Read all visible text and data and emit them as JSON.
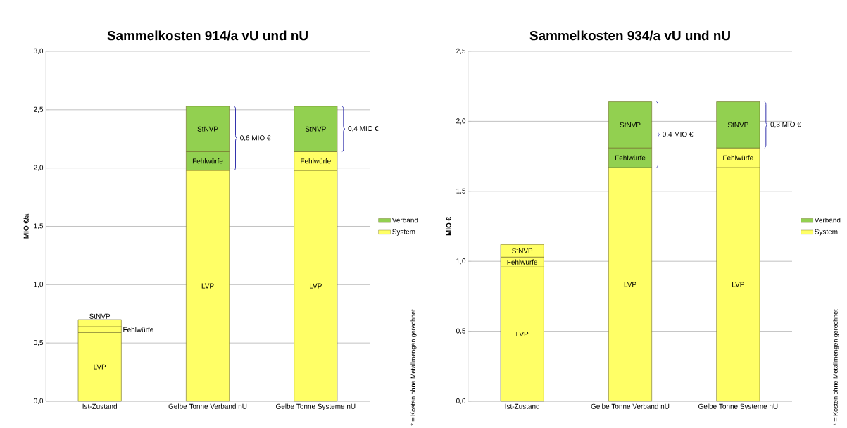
{
  "chart_data": [
    {
      "type": "bar",
      "stacked": true,
      "title": "Sammelkosten 914/a vU und nU",
      "ylabel": "MIO €/a",
      "categories": [
        "Ist-Zustand",
        "Gelbe Tonne Verband nU",
        "Gelbe Tonne Systeme nU"
      ],
      "series": [
        {
          "name": "LVP",
          "values": [
            0.59,
            1.98,
            1.98
          ],
          "colors": [
            "#ffff66",
            "#ffff66",
            "#ffff66"
          ]
        },
        {
          "name": "Fehlwürfe",
          "values": [
            0.05,
            0.16,
            0.16
          ],
          "colors": [
            "#ffff66",
            "#92d050",
            "#ffff66"
          ]
        },
        {
          "name": "StNVP",
          "values": [
            0.06,
            0.39,
            0.39
          ],
          "colors": [
            "#ffff66",
            "#92d050",
            "#92d050"
          ]
        },
        {
          "name": "Verband",
          "color": "#92d050",
          "values": [
            null,
            null,
            null
          ]
        },
        {
          "name": "System",
          "color": "#ffff66",
          "values": [
            null,
            null,
            null
          ]
        }
      ],
      "ylim": [
        0,
        3
      ],
      "yticks": [
        {
          "value": 0,
          "label": "0,0"
        },
        {
          "value": 0.5,
          "label": "0,5"
        },
        {
          "value": 1,
          "label": "1,0"
        },
        {
          "value": 1.5,
          "label": "1,5"
        },
        {
          "value": 2,
          "label": "2,0"
        },
        {
          "value": 2.5,
          "label": "2,5"
        },
        {
          "value": 3,
          "label": "3,0"
        }
      ],
      "grid": "y",
      "legend": "right",
      "annotations": [
        "0,6 MIO €",
        "0,4 MIO €",
        "* = Kosten ohne Metallmengen gerechnet"
      ]
    },
    {
      "type": "bar",
      "stacked": true,
      "title": "Sammelkosten 934/a vU und nU",
      "ylabel": "MIO €",
      "categories": [
        "Ist-Zustand",
        "Gelbe Tonne Verband nU",
        "Gelbe Tonne Systeme nU"
      ],
      "series": [
        {
          "name": "LVP",
          "values": [
            0.96,
            1.67,
            1.67
          ],
          "colors": [
            "#ffff66",
            "#ffff66",
            "#ffff66"
          ]
        },
        {
          "name": "Fehlwürfe",
          "values": [
            0.07,
            0.14,
            0.14
          ],
          "colors": [
            "#ffff66",
            "#92d050",
            "#ffff66"
          ]
        },
        {
          "name": "StNVP",
          "values": [
            0.09,
            0.33,
            0.33
          ],
          "colors": [
            "#ffff66",
            "#92d050",
            "#92d050"
          ]
        },
        {
          "name": "Verband",
          "color": "#92d050",
          "values": [
            null,
            null,
            null
          ]
        },
        {
          "name": "System",
          "color": "#ffff66",
          "values": [
            null,
            null,
            null
          ]
        }
      ],
      "ylim": [
        0,
        2.5
      ],
      "yticks": [
        {
          "value": 0,
          "label": "0,0"
        },
        {
          "value": 0.5,
          "label": "0,5"
        },
        {
          "value": 1,
          "label": "1,0"
        },
        {
          "value": 1.5,
          "label": "1,5"
        },
        {
          "value": 2,
          "label": "2,0"
        },
        {
          "value": 2.5,
          "label": "2,5"
        }
      ],
      "grid": "y",
      "legend": "right",
      "annotations": [
        "0,4 MIO €",
        "0,3 MIO €",
        "* = Kosten ohne Metallmengen gerechnet"
      ]
    }
  ]
}
